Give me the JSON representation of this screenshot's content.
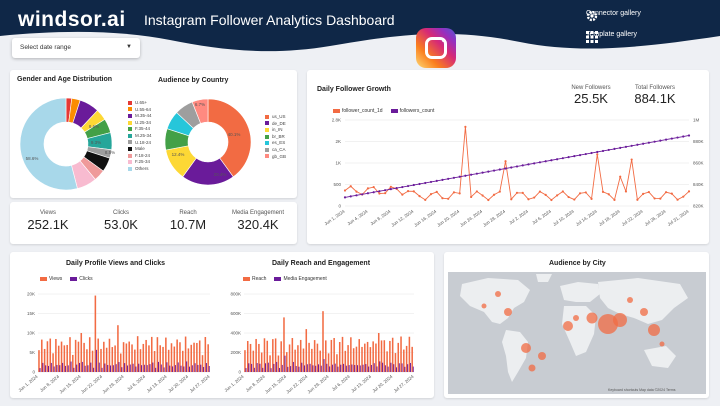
{
  "header": {
    "brand": "windsor.ai",
    "title": "Instagram Follower Analytics Dashboard",
    "nav": [
      {
        "label": "Connector gallery",
        "icon": "gear-icon"
      },
      {
        "label": "Template gallery",
        "icon": "grid-icon"
      }
    ],
    "date_select_placeholder": "Select date range",
    "colors": {
      "header_bg": "#0f2747",
      "accent_orange": "#f26b43",
      "accent_purple": "#6a1b9a"
    }
  },
  "gender_age": {
    "title": "Gender and Age Distribution",
    "slices": [
      {
        "label": "U.65+",
        "value": 2,
        "color": "#e53935"
      },
      {
        "label": "U.55-64",
        "value": 3,
        "color": "#fb8c00"
      },
      {
        "label": "M.35-44",
        "value": 7,
        "color": "#6a1b9a"
      },
      {
        "label": "U.25-34",
        "value": 4,
        "color": "#fdd835"
      },
      {
        "label": "F.35-44",
        "value": 5,
        "color": "#43a047"
      },
      {
        "label": "M.25-34",
        "value": 6,
        "color": "#26a69a"
      },
      {
        "label": "U.18-24",
        "value": 3,
        "color": "#9e9e9e"
      },
      {
        "label": "Male",
        "value": 5,
        "color": "#111111"
      },
      {
        "label": "F.18-24",
        "value": 4,
        "color": "#ef9a9a"
      },
      {
        "label": "F.25-34",
        "value": 7,
        "color": "#f8bbd0"
      },
      {
        "label": "Others",
        "value": 54,
        "color": "#a8d8ea"
      }
    ],
    "labels": [
      "8.6%",
      "9.3%",
      "8.5%",
      "58.6%"
    ]
  },
  "country": {
    "title": "Audience by Country",
    "slices": [
      {
        "label": "us_US",
        "value": 40,
        "color": "#f26b43"
      },
      {
        "label": "de_DE",
        "value": 20,
        "color": "#6a1b9a"
      },
      {
        "label": "in_IN",
        "value": 12,
        "color": "#fdd835"
      },
      {
        "label": "br_BR",
        "value": 8,
        "color": "#43a047"
      },
      {
        "label": "es_ES",
        "value": 7,
        "color": "#26c6da"
      },
      {
        "label": "ca_CA",
        "value": 7,
        "color": "#9e9e9e"
      },
      {
        "label": "gb_GB",
        "value": 6,
        "color": "#ff8a80"
      }
    ],
    "labels": [
      "6.7%",
      "40.1%",
      "20.4%",
      "12.4%"
    ]
  },
  "kpis": [
    {
      "label": "Views",
      "value": "252.1K"
    },
    {
      "label": "Clicks",
      "value": "53.0K"
    },
    {
      "label": "Reach",
      "value": "10.7M"
    },
    {
      "label": "Media Engagement",
      "value": "320.4K"
    }
  ],
  "growth": {
    "title": "Daily Follower Growth",
    "legend": [
      "follower_count_1d",
      "followers_count"
    ],
    "new_followers_label": "New Followers",
    "new_followers_value": "25.5K",
    "total_followers_label": "Total Followers",
    "total_followers_value": "884.1K",
    "left_ticks": [
      "2.8K",
      "2K",
      "1K",
      "500",
      "0"
    ],
    "right_ticks": [
      "1M",
      "880K",
      "860K",
      "840K",
      "820K"
    ],
    "x_ticks": [
      "Jun 1, 2024",
      "Jun 4, 2024",
      "Jun 8, 2024",
      "Jun 12, 2024",
      "Jun 16, 2024",
      "Jun 20, 2024",
      "Jun 24, 2024",
      "Jun 28, 2024",
      "Jul 2, 2024",
      "Jul 6, 2024",
      "Jul 10, 2024",
      "Jul 14, 2024",
      "Jul 18, 2024",
      "Jul 22, 2024",
      "Jul 26, 2024",
      "Jul 31, 2024"
    ]
  },
  "views_clicks": {
    "title": "Daily Profile Views and Clicks",
    "legend": [
      "Views",
      "Clicks"
    ],
    "y_ticks": [
      "20K",
      "15K",
      "10K",
      "5K",
      "0"
    ],
    "x_ticks": [
      "Jun 1, 2024",
      "Jun 8, 2024",
      "Jun 15, 2024",
      "Jun 22, 2024",
      "Jun 29, 2024",
      "Jul 6, 2024",
      "Jul 13, 2024",
      "Jul 20, 2024",
      "Jul 27, 2024"
    ]
  },
  "reach_eng": {
    "title": "Daily Reach and Engagement",
    "legend": [
      "Reach",
      "Media Engagement"
    ],
    "y_ticks": [
      "800K",
      "600K",
      "400K",
      "200K",
      "0"
    ],
    "x_ticks": [
      "Jun 1, 2024",
      "Jun 8, 2024",
      "Jun 15, 2024",
      "Jun 22, 2024",
      "Jun 29, 2024",
      "Jul 6, 2024",
      "Jul 13, 2024",
      "Jul 20, 2024",
      "Jul 27, 2024"
    ]
  },
  "city": {
    "title": "Audience by City",
    "attribution": "Keyboard shortcuts   Map data ©2024   Terms"
  }
}
